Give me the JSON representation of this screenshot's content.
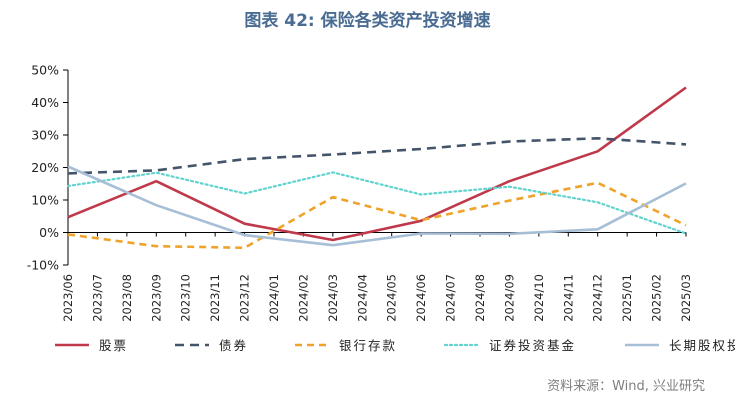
{
  "title": "图表 42: 保险各类资产投资增速",
  "source": "资料来源：Wind, 兴业研究",
  "colors": {
    "title": "#4a6c93",
    "axis": "#000000",
    "text": "#222222",
    "source": "#7f7f7f"
  },
  "chart_data": {
    "type": "line",
    "title": "图表 42: 保险各类资产投资增速",
    "xlabel": "",
    "ylabel": "",
    "ylim": [
      -10,
      50
    ],
    "yticks": [
      "-10%",
      "0%",
      "10%",
      "20%",
      "30%",
      "40%",
      "50%"
    ],
    "ytick_values": [
      -10,
      0,
      10,
      20,
      30,
      40,
      50
    ],
    "grid": false,
    "legend_position": "bottom",
    "categories": [
      "2023/06",
      "2023/07",
      "2023/08",
      "2023/09",
      "2023/10",
      "2023/11",
      "2023/12",
      "2024/01",
      "2024/02",
      "2024/03",
      "2024/04",
      "2024/05",
      "2024/06",
      "2024/07",
      "2024/08",
      "2024/09",
      "2024/10",
      "2024/11",
      "2024/12",
      "2025/01",
      "2025/02",
      "2025/03"
    ],
    "series": [
      {
        "name": "股票",
        "color": "#c0394b",
        "dash": "solid",
        "x": [
          "2023/06",
          "2023/09",
          "2023/12",
          "2024/03",
          "2024/06",
          "2024/09",
          "2024/12",
          "2025/03"
        ],
        "values": [
          4.7,
          15.8,
          2.7,
          -2.3,
          3.6,
          15.8,
          25.0,
          44.6
        ]
      },
      {
        "name": "债券",
        "color": "#44546a",
        "dash": "long",
        "x": [
          "2023/06",
          "2023/09",
          "2023/12",
          "2024/03",
          "2024/06",
          "2024/09",
          "2024/12",
          "2025/03"
        ],
        "values": [
          18.2,
          19.1,
          22.6,
          24.0,
          25.7,
          28.0,
          29.0,
          27.1
        ]
      },
      {
        "name": "银行存款",
        "color": "#f0a32b",
        "dash": "medium",
        "x": [
          "2023/06",
          "2023/09",
          "2023/12",
          "2024/03",
          "2024/06",
          "2024/09",
          "2024/12",
          "2025/03"
        ],
        "values": [
          -0.6,
          -4.2,
          -4.7,
          10.9,
          3.8,
          9.8,
          15.3,
          2.2
        ]
      },
      {
        "name": "证券投资基金",
        "color": "#5fd4cf",
        "dash": "dot",
        "x": [
          "2023/06",
          "2023/09",
          "2023/12",
          "2024/03",
          "2024/06",
          "2024/09",
          "2024/12",
          "2025/03"
        ],
        "values": [
          14.3,
          18.4,
          12.0,
          18.5,
          11.7,
          14.1,
          9.3,
          -0.3
        ]
      },
      {
        "name": "长期股权投资",
        "color": "#a7bfd6",
        "dash": "solid",
        "x": [
          "2023/06",
          "2023/09",
          "2023/12",
          "2024/03",
          "2024/06",
          "2024/09",
          "2024/12",
          "2025/03"
        ],
        "values": [
          20.3,
          8.4,
          -0.8,
          -3.9,
          -0.3,
          -0.4,
          1.0,
          15.1
        ]
      }
    ]
  }
}
